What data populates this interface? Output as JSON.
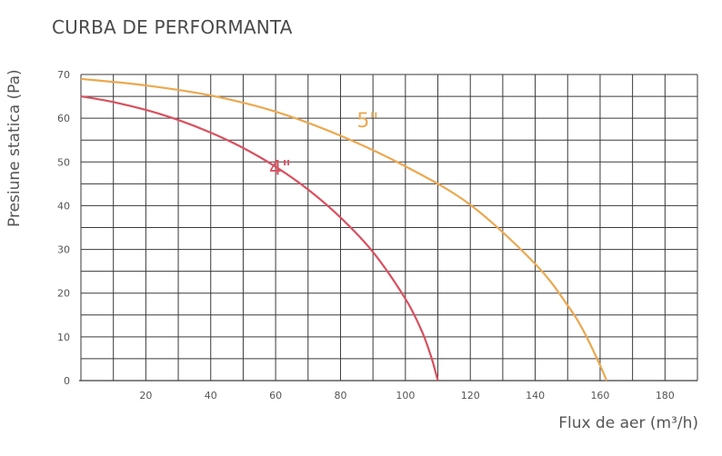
{
  "chart_data": {
    "type": "line",
    "title": "CURBA DE PERFORMANTA",
    "xlabel": "Flux de aer (m³/h)",
    "ylabel": "Presiune statica (Pa)",
    "xlim": [
      0,
      190
    ],
    "ylim": [
      0,
      70
    ],
    "xticks": [
      20,
      40,
      60,
      80,
      100,
      120,
      140,
      160,
      180
    ],
    "yticks": [
      0,
      10,
      20,
      30,
      40,
      50,
      60,
      70
    ],
    "grid": true,
    "series": [
      {
        "name": "4\"",
        "color": "#d9505f",
        "x": [
          0,
          10,
          20,
          30,
          40,
          50,
          60,
          70,
          80,
          90,
          100,
          105,
          108,
          110
        ],
        "y": [
          65,
          63.7,
          61.9,
          59.6,
          56.7,
          53.2,
          48.9,
          43.7,
          37.3,
          29.4,
          18.7,
          11.4,
          5.3,
          0
        ]
      },
      {
        "name": "5\"",
        "color": "#eba84f",
        "x": [
          0,
          20,
          40,
          60,
          80,
          100,
          120,
          140,
          150,
          155,
          160,
          162
        ],
        "y": [
          69,
          67.5,
          65.2,
          61.5,
          56,
          49,
          40.2,
          26.7,
          17.2,
          11.2,
          3.5,
          0
        ]
      }
    ]
  }
}
